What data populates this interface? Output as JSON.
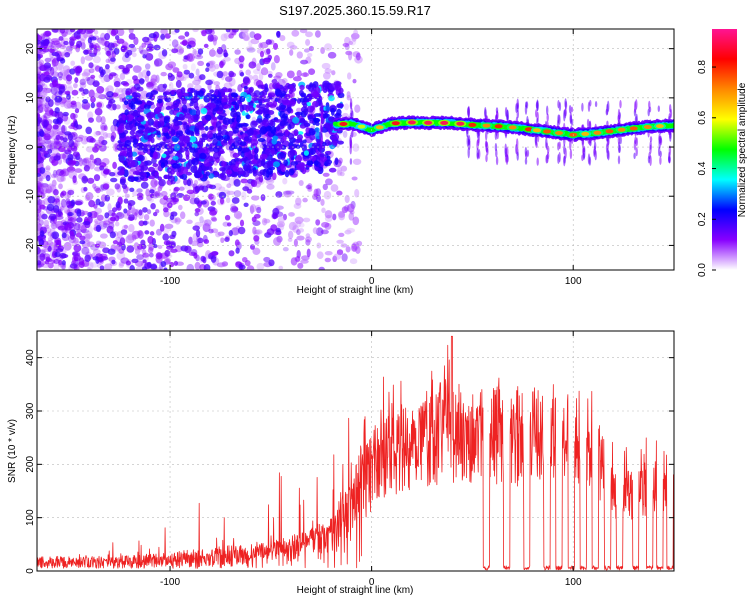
{
  "chart_data": [
    {
      "type": "heatmap",
      "title": "S197.2025.360.15.59.R17",
      "xlabel": "Height of straight line (km)",
      "ylabel": "Frequency (Hz)",
      "xlim": [
        -166,
        150
      ],
      "ylim": [
        -25,
        24
      ],
      "xticks": [
        -100,
        0,
        100
      ],
      "xtick_labels": [
        "-100",
        "0",
        "100"
      ],
      "yticks": [
        -20,
        -10,
        0,
        10,
        20
      ],
      "ytick_labels": [
        "-20",
        "-10",
        "0",
        "10",
        "20"
      ],
      "colorbar": {
        "label": "Normalized spectral amplitude",
        "range": [
          0,
          0.95
        ],
        "ticks": [
          0.0,
          0.2,
          0.4,
          0.6,
          0.8
        ],
        "tick_labels": [
          "0.0",
          "0.2",
          "0.4",
          "0.6",
          "0.8"
        ],
        "colors": [
          "#ffffff",
          "#8800ff",
          "#0000ff",
          "#00ffff",
          "#00ff00",
          "#ffff00",
          "#ff8800",
          "#ff0000",
          "#ff1493"
        ]
      },
      "ridge": {
        "description": "dominant frequency vs height",
        "x": [
          -20,
          -10,
          0,
          10,
          20,
          30,
          40,
          50,
          60,
          70,
          80,
          90,
          100,
          110,
          120,
          130,
          140,
          150
        ],
        "y": [
          4.5,
          4.8,
          3.5,
          4.8,
          5.0,
          4.9,
          4.9,
          4.5,
          4.3,
          4.0,
          3.5,
          3.0,
          2.5,
          2.8,
          3.3,
          3.8,
          4.2,
          4.4
        ]
      }
    },
    {
      "type": "line",
      "xlabel": "Height of straight line (km)",
      "ylabel": "SNR (10 * v/v)",
      "xlim": [
        -166,
        150
      ],
      "ylim": [
        0,
        450
      ],
      "xticks": [
        -100,
        0,
        100
      ],
      "xtick_labels": [
        "-100",
        "0",
        "100"
      ],
      "yticks": [
        0,
        100,
        200,
        300,
        400
      ],
      "ytick_labels": [
        "0",
        "100",
        "200",
        "300",
        "400"
      ],
      "color": "#ee2222",
      "envelope": {
        "x": [
          -166,
          -140,
          -120,
          -100,
          -80,
          -60,
          -40,
          -20,
          0,
          10,
          20,
          30,
          40,
          50,
          60,
          70,
          80,
          90,
          100,
          110,
          115,
          120,
          125,
          130,
          135,
          140,
          145,
          150
        ],
        "baseline": [
          20,
          20,
          22,
          28,
          35,
          45,
          60,
          90,
          250,
          280,
          300,
          320,
          330,
          325,
          320,
          315,
          320,
          320,
          315,
          300,
          230,
          200,
          180,
          190,
          200,
          210,
          225,
          220
        ],
        "peak": [
          40,
          45,
          60,
          90,
          140,
          180,
          230,
          290,
          360,
          370,
          380,
          390,
          440,
          360,
          350,
          355,
          370,
          360,
          350,
          330,
          300,
          280,
          250,
          240,
          250,
          270,
          260,
          250
        ]
      },
      "dropouts_x": [
        57,
        67,
        77,
        87,
        93,
        99,
        105,
        111,
        117,
        123,
        131,
        138,
        143,
        148
      ]
    }
  ]
}
